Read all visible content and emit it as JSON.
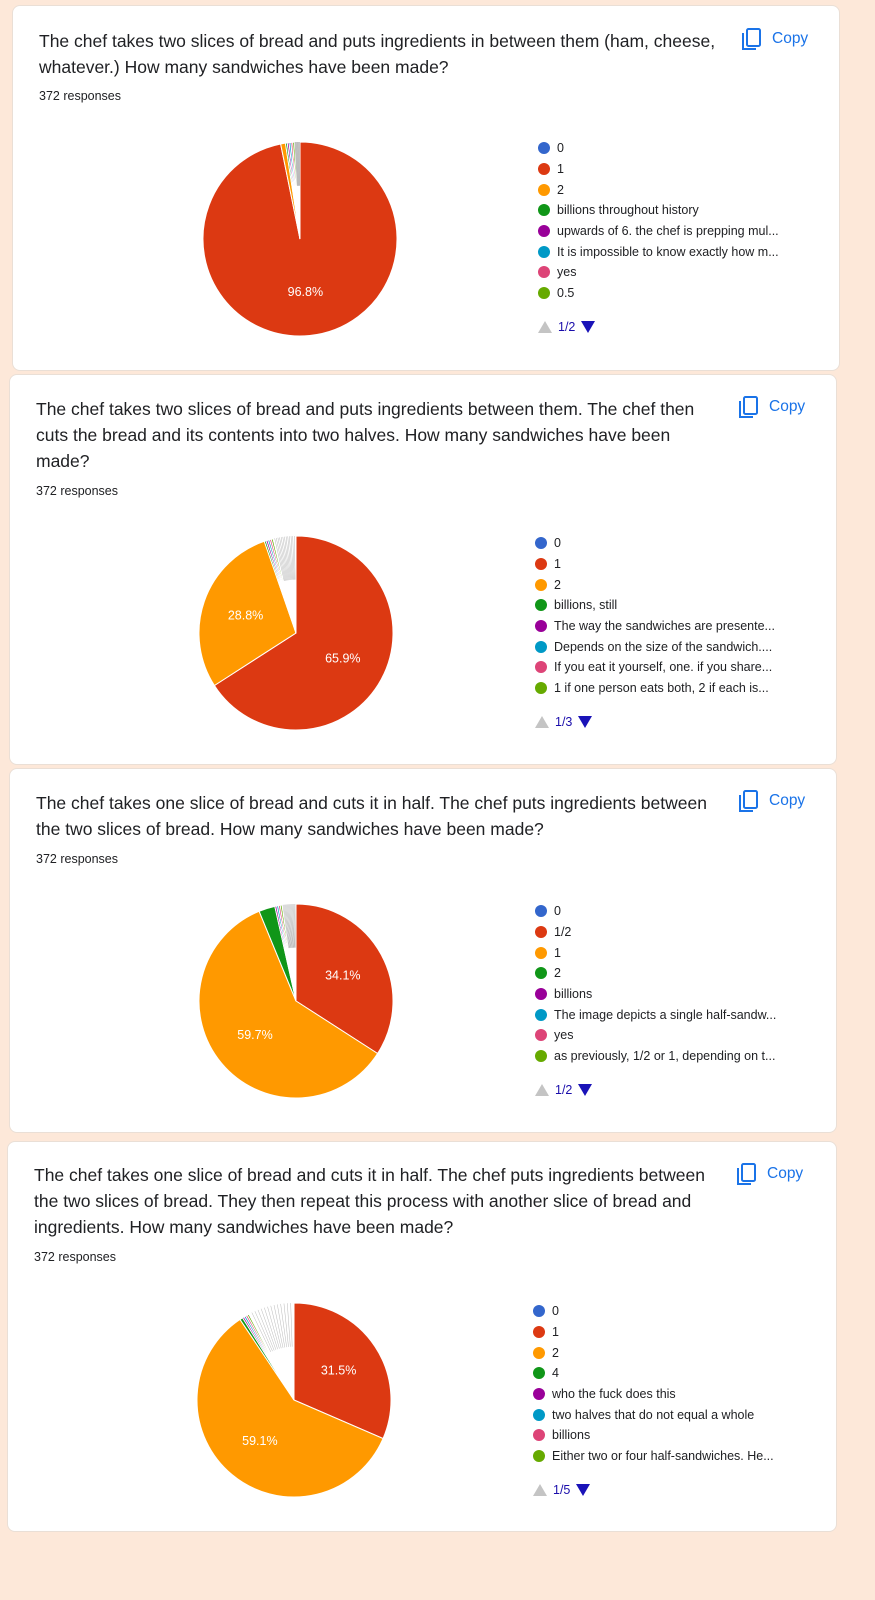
{
  "colors": {
    "blue": "#3366cc",
    "red": "#dc3912",
    "orange": "#ff9900",
    "green": "#109618",
    "purple": "#990099",
    "teal": "#0099c6",
    "pink": "#dd4477",
    "lime": "#66aa00",
    "accent": "#1a73e8"
  },
  "copy_label": "Copy",
  "cards": [
    {
      "question": "The chef takes two slices of bread and puts ingredients in between them (ham, cheese, whatever.) How many sandwiches have been made?",
      "responses": "372 responses",
      "legend": [
        "0",
        "1",
        "2",
        "billions throughout history",
        "upwards of 6. the chef is prepping mul...",
        "It is impossible to know exactly how m...",
        "yes",
        "0.5"
      ],
      "page": "1/2",
      "chart_data": {
        "type": "pie",
        "total_responses": 372,
        "labels": [
          "0",
          "1",
          "2",
          "billions throughout history",
          "upwards of 6. the chef is prepping mul...",
          "It is impossible to know exactly how m...",
          "yes",
          "0.5"
        ],
        "values": [
          0,
          96.8,
          0.8,
          0.3,
          0.3,
          0.3,
          0.3,
          0.3
        ],
        "other_percent": 0.9,
        "value_labels": [
          "",
          "96.8%",
          "",
          "",
          "",
          "",
          "",
          ""
        ],
        "start_angle_deg": 90,
        "direction": "clockwise"
      }
    },
    {
      "question": "The chef takes two slices of bread and puts ingredients between them. The chef then cuts the bread and its contents into two halves. How many sandwiches have been made?",
      "responses": "372 responses",
      "legend": [
        "0",
        "1",
        "2",
        "billions, still",
        "The way the sandwiches are presente...",
        "Depends on the size of the sandwich....",
        "If you eat it yourself, one. if you share...",
        "1 if one person eats both, 2 if each is..."
      ],
      "page": "1/3",
      "chart_data": {
        "type": "pie",
        "total_responses": 372,
        "labels": [
          "0",
          "1",
          "2",
          "billions, still",
          "The way the sandwiches are presente...",
          "Depends on the size of the sandwich....",
          "If you eat it yourself, one. if you share...",
          "1 if one person eats both, 2 if each is..."
        ],
        "values": [
          0,
          65.9,
          28.8,
          0.3,
          0.3,
          0.3,
          0.3,
          0.3
        ],
        "other_percent": 3.8,
        "value_labels": [
          "",
          "65.9%",
          "28.8%",
          "",
          "",
          "",
          "",
          ""
        ],
        "start_angle_deg": 90,
        "direction": "clockwise"
      }
    },
    {
      "question": "The chef takes one slice of bread and cuts it in half. The chef puts ingredients between the two slices of bread. How many sandwiches have been made?",
      "responses": "372 responses",
      "legend": [
        "0",
        "1/2",
        "1",
        "2",
        "billions",
        "The image depicts a single half-sandw...",
        "yes",
        "as previously, 1/2 or 1, depending on t..."
      ],
      "page": "1/2",
      "chart_data": {
        "type": "pie",
        "total_responses": 372,
        "labels": [
          "0",
          "1/2",
          "1",
          "2",
          "billions",
          "The image depicts a single half-sandw...",
          "yes",
          "as previously, 1/2 or 1, depending on t..."
        ],
        "values": [
          0,
          34.1,
          59.7,
          2.7,
          0.3,
          0.3,
          0.3,
          0.3
        ],
        "other_percent": 2.3,
        "value_labels": [
          "",
          "34.1%",
          "59.7%",
          "",
          "",
          "",
          "",
          ""
        ],
        "start_angle_deg": 90,
        "direction": "clockwise"
      }
    },
    {
      "question": "The chef takes one slice of bread and cuts it in half. The chef puts ingredients between the two slices of bread. They then repeat this process with another slice of bread and ingredients. How many sandwiches have been made?",
      "responses": "372 responses",
      "legend": [
        "0",
        "1",
        "2",
        "4",
        "who the fuck does this",
        "two halves that do not equal a whole",
        "billions",
        "Either two or four half-sandwiches. He..."
      ],
      "page": "1/5",
      "chart_data": {
        "type": "pie",
        "total_responses": 372,
        "labels": [
          "0",
          "1",
          "2",
          "4",
          "who the fuck does this",
          "two halves that do not equal a whole",
          "billions",
          "Either two or four half-sandwiches. He..."
        ],
        "values": [
          0,
          31.5,
          59.1,
          0.5,
          0.3,
          0.3,
          0.3,
          0.3
        ],
        "other_percent": 7.7,
        "value_labels": [
          "",
          "31.5%",
          "59.1%",
          "",
          "",
          "",
          "",
          ""
        ],
        "start_angle_deg": 90,
        "direction": "clockwise"
      }
    }
  ]
}
